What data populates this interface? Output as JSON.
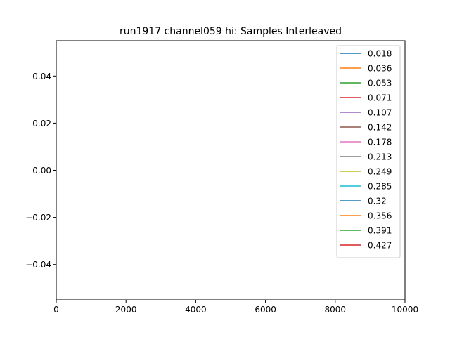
{
  "chart_data": {
    "type": "line",
    "title": "run1917 channel059 hi: Samples Interleaved",
    "xlabel": "",
    "ylabel": "",
    "xlim": [
      0,
      10000
    ],
    "ylim": [
      -0.055,
      0.055
    ],
    "xticks": [
      0,
      2000,
      4000,
      6000,
      8000,
      10000
    ],
    "xtick_labels": [
      "0",
      "2000",
      "4000",
      "6000",
      "8000",
      "10000"
    ],
    "yticks": [
      -0.04,
      -0.02,
      0.0,
      0.02,
      0.04
    ],
    "ytick_labels": [
      "−0.04",
      "−0.02",
      "0.00",
      "0.02",
      "0.04"
    ],
    "grid": false,
    "legend_position": "top-right",
    "series": [
      {
        "name": "0.018",
        "color": "#1f77b4",
        "values": []
      },
      {
        "name": "0.036",
        "color": "#ff7f0e",
        "values": []
      },
      {
        "name": "0.053",
        "color": "#2ca02c",
        "values": []
      },
      {
        "name": "0.071",
        "color": "#d62728",
        "values": []
      },
      {
        "name": "0.107",
        "color": "#9467bd",
        "values": []
      },
      {
        "name": "0.142",
        "color": "#8c564b",
        "values": []
      },
      {
        "name": "0.178",
        "color": "#e377c2",
        "values": []
      },
      {
        "name": "0.213",
        "color": "#7f7f7f",
        "values": []
      },
      {
        "name": "0.249",
        "color": "#bcbd22",
        "values": []
      },
      {
        "name": "0.285",
        "color": "#17becf",
        "values": []
      },
      {
        "name": "0.32",
        "color": "#1f77b4",
        "values": []
      },
      {
        "name": "0.356",
        "color": "#ff7f0e",
        "values": []
      },
      {
        "name": "0.391",
        "color": "#2ca02c",
        "values": []
      },
      {
        "name": "0.427",
        "color": "#d62728",
        "values": []
      }
    ]
  }
}
